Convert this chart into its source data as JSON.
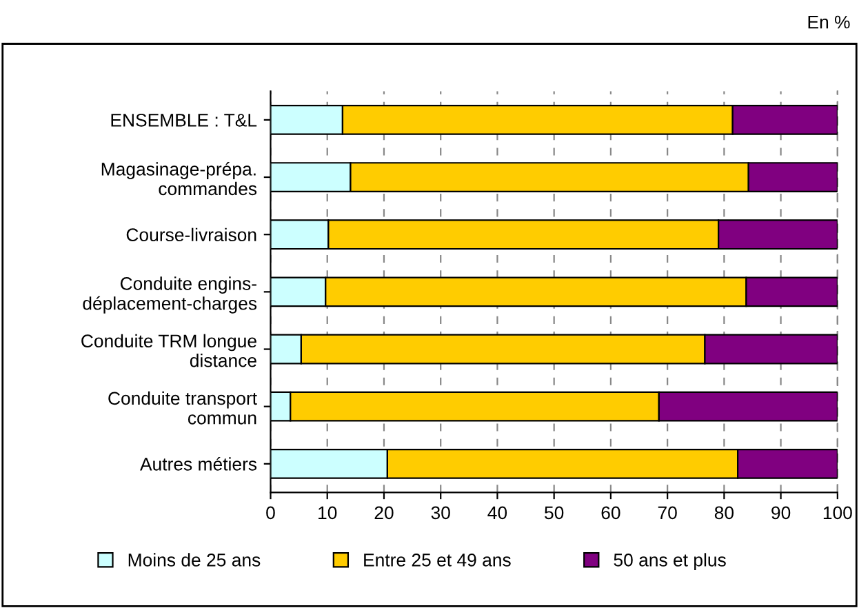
{
  "chart_data": {
    "type": "bar",
    "orientation": "horizontal",
    "stacked": true,
    "annotations": [
      "En %"
    ],
    "categories": [
      "ENSEMBLE : T&L",
      "Magasinage-prépa.\ncommandes",
      "Course-livraison",
      "Conduite engins-\ndéplacement-charges",
      "Conduite TRM longue\ndistance",
      "Conduite transport\ncommun",
      "Autres métiers"
    ],
    "series": [
      {
        "name": "Moins de 25 ans",
        "color": "#ccffff",
        "values": [
          12.7,
          14.1,
          10.2,
          9.7,
          5.4,
          3.5,
          20.6
        ]
      },
      {
        "name": "Entre 25 et 49 ans",
        "color": "#ffcc00",
        "values": [
          68.8,
          70.2,
          68.8,
          74.2,
          71.2,
          65.0,
          61.8
        ]
      },
      {
        "name": "50 ans et plus",
        "color": "#800080",
        "values": [
          18.5,
          15.7,
          21.0,
          16.1,
          23.4,
          31.5,
          17.6
        ]
      }
    ],
    "xlim": [
      0,
      100
    ],
    "xticks": [
      0,
      10,
      20,
      30,
      40,
      50,
      60,
      70,
      80,
      90,
      100
    ],
    "grid": "x",
    "legend": "bottom"
  }
}
